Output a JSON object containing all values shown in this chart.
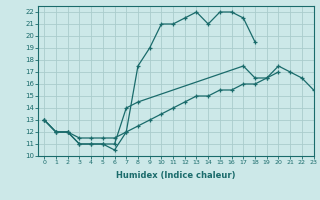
{
  "xlabel": "Humidex (Indice chaleur)",
  "xlim": [
    -0.5,
    23
  ],
  "ylim": [
    10,
    22.5
  ],
  "bg_color": "#cce8e8",
  "grid_color": "#aacccc",
  "line_color": "#1a6b6b",
  "line1_x": [
    0,
    1,
    2,
    3,
    4,
    5,
    6,
    7,
    8,
    9,
    10,
    11,
    12,
    13,
    14,
    15,
    16,
    17,
    18
  ],
  "line1_y": [
    13,
    12,
    12,
    11,
    11,
    11,
    10.5,
    12,
    17.5,
    19,
    21,
    21,
    21.5,
    22,
    21,
    22,
    22,
    21.5,
    19.5
  ],
  "line2_x": [
    0,
    1,
    2,
    3,
    4,
    5,
    6,
    7,
    8,
    17,
    18,
    19,
    20,
    21,
    22,
    23
  ],
  "line2_y": [
    13,
    12,
    12,
    11,
    11,
    11,
    11,
    14,
    14.5,
    17.5,
    16.5,
    16.5,
    17.5,
    17,
    16.5,
    15.5
  ],
  "line3_x": [
    0,
    1,
    2,
    3,
    4,
    5,
    6,
    7,
    8,
    9,
    10,
    11,
    12,
    13,
    14,
    15,
    16,
    17,
    18,
    19,
    20
  ],
  "line3_y": [
    13,
    12,
    12,
    11.5,
    11.5,
    11.5,
    11.5,
    12,
    12.5,
    13,
    13.5,
    14,
    14.5,
    15,
    15,
    15.5,
    15.5,
    16,
    16,
    16.5,
    17
  ]
}
